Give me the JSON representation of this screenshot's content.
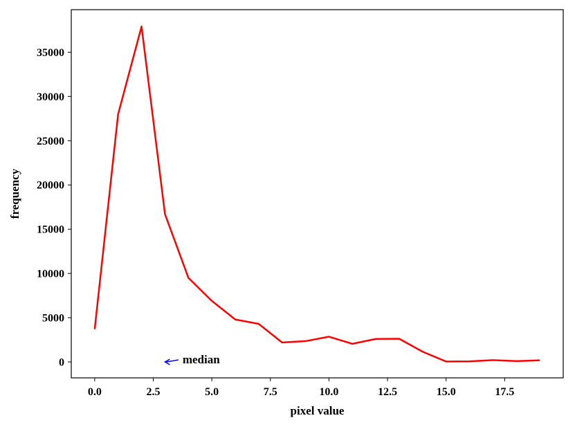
{
  "chart_data": {
    "type": "line",
    "xlabel": "pixel value",
    "ylabel": "frequency",
    "xlim": [
      -1,
      20
    ],
    "ylim": [
      -1800,
      39800
    ],
    "x_ticks": [
      0.0,
      2.5,
      5.0,
      7.5,
      10.0,
      12.5,
      15.0,
      17.5
    ],
    "x_tick_labels": [
      "0.0",
      "2.5",
      "5.0",
      "7.5",
      "10.0",
      "12.5",
      "15.0",
      "17.5"
    ],
    "y_ticks": [
      0,
      5000,
      10000,
      15000,
      20000,
      25000,
      30000,
      35000
    ],
    "y_tick_labels": [
      "0",
      "5000",
      "10000",
      "15000",
      "20000",
      "25000",
      "30000",
      "35000"
    ],
    "grid": false,
    "series": [
      {
        "color": "#ff0000",
        "x": [
          0,
          1,
          2,
          3,
          4,
          5,
          6,
          7,
          8,
          9,
          10,
          11,
          12,
          13,
          14,
          15,
          16,
          17,
          18,
          19
        ],
        "y": [
          3700,
          28000,
          37900,
          16700,
          9500,
          6900,
          4800,
          4300,
          2200,
          2350,
          2850,
          2050,
          2600,
          2620,
          1150,
          50,
          70,
          200,
          100,
          180
        ]
      }
    ],
    "annotations": [
      {
        "text": "median",
        "arrow_color": "#0000ff",
        "arrow_tip": [
          3,
          0
        ],
        "text_at": [
          3.75,
          0
        ]
      }
    ]
  }
}
